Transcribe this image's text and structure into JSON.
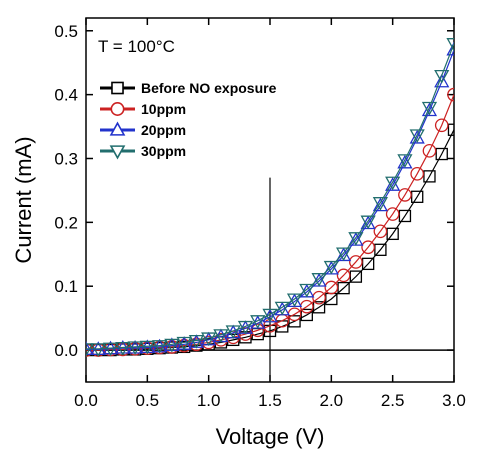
{
  "chart_data": {
    "type": "scatter",
    "title": "",
    "annotation": "T = 100°C",
    "xlabel": "Voltage (V)",
    "ylabel": "Current (mA)",
    "xlim": [
      0.0,
      3.0
    ],
    "ylim": [
      -0.05,
      0.52
    ],
    "xticks": [
      0.0,
      0.5,
      1.0,
      1.5,
      2.0,
      2.5,
      3.0
    ],
    "xtick_labels": [
      "0.0",
      "0.5",
      "1.0",
      "1.5",
      "2.0",
      "2.5",
      "3.0"
    ],
    "yticks": [
      0.0,
      0.1,
      0.2,
      0.3,
      0.4,
      0.5
    ],
    "ytick_labels": [
      "0.0",
      "0.1",
      "0.2",
      "0.3",
      "0.4",
      "0.5"
    ],
    "grid": false,
    "legend_position": "top-left",
    "reference_lines": [
      {
        "orientation": "vertical",
        "x": 1.5,
        "y_to": 0.27
      },
      {
        "orientation": "horizontal",
        "y": 0.0
      }
    ],
    "x": [
      0.0,
      0.1,
      0.2,
      0.3,
      0.4,
      0.5,
      0.6,
      0.7,
      0.8,
      0.9,
      1.0,
      1.1,
      1.2,
      1.3,
      1.4,
      1.5,
      1.6,
      1.7,
      1.8,
      1.9,
      2.0,
      2.1,
      2.2,
      2.3,
      2.4,
      2.5,
      2.6,
      2.7,
      2.8,
      2.9,
      3.0
    ],
    "series": [
      {
        "name": "Before NO exposure",
        "marker": "square",
        "color": "#000000",
        "values": [
          0.0,
          0.0,
          0.0,
          0.001,
          0.001,
          0.002,
          0.003,
          0.004,
          0.005,
          0.007,
          0.009,
          0.012,
          0.016,
          0.02,
          0.025,
          0.03,
          0.037,
          0.045,
          0.055,
          0.067,
          0.08,
          0.097,
          0.115,
          0.135,
          0.157,
          0.182,
          0.21,
          0.24,
          0.272,
          0.307,
          0.345
        ]
      },
      {
        "name": "10ppm",
        "marker": "circle",
        "color": "#cc2222",
        "values": [
          0.0,
          0.0,
          0.001,
          0.001,
          0.002,
          0.003,
          0.004,
          0.005,
          0.007,
          0.009,
          0.012,
          0.016,
          0.02,
          0.025,
          0.031,
          0.038,
          0.046,
          0.056,
          0.068,
          0.082,
          0.098,
          0.117,
          0.138,
          0.161,
          0.186,
          0.213,
          0.243,
          0.276,
          0.312,
          0.352,
          0.4
        ]
      },
      {
        "name": "20ppm",
        "marker": "triangle-up",
        "color": "#2233cc",
        "values": [
          0.001,
          0.001,
          0.002,
          0.003,
          0.003,
          0.004,
          0.005,
          0.007,
          0.009,
          0.012,
          0.016,
          0.021,
          0.027,
          0.034,
          0.042,
          0.052,
          0.063,
          0.076,
          0.091,
          0.108,
          0.127,
          0.148,
          0.172,
          0.198,
          0.226,
          0.258,
          0.293,
          0.332,
          0.375,
          0.42,
          0.47
        ]
      },
      {
        "name": "30ppm",
        "marker": "triangle-down",
        "color": "#226e6e",
        "values": [
          0.002,
          0.002,
          0.003,
          0.004,
          0.005,
          0.006,
          0.007,
          0.009,
          0.012,
          0.015,
          0.019,
          0.024,
          0.03,
          0.037,
          0.046,
          0.056,
          0.067,
          0.08,
          0.095,
          0.112,
          0.131,
          0.152,
          0.176,
          0.202,
          0.231,
          0.263,
          0.298,
          0.337,
          0.38,
          0.43,
          0.48
        ]
      }
    ]
  }
}
